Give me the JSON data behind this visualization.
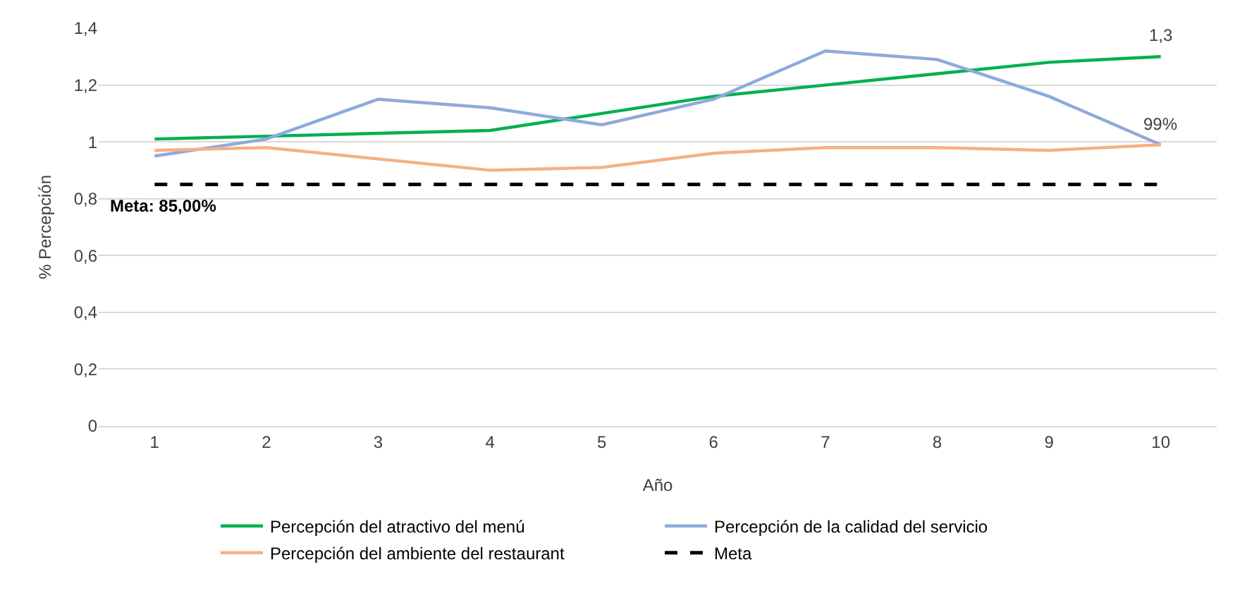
{
  "chart_data": {
    "type": "line",
    "xlabel": "Año",
    "ylabel": "% Percepción",
    "categories": [
      "1",
      "2",
      "3",
      "4",
      "5",
      "6",
      "7",
      "8",
      "9",
      "10"
    ],
    "series": [
      {
        "name": "Percepción del atractivo del menú",
        "color": "#00b050",
        "values": [
          1.01,
          1.02,
          1.03,
          1.04,
          1.1,
          1.16,
          1.2,
          1.24,
          1.28,
          1.3
        ]
      },
      {
        "name": "Percepción de la calidad del servicio",
        "color": "#8eaadb",
        "values": [
          0.95,
          1.01,
          1.15,
          1.12,
          1.06,
          1.15,
          1.32,
          1.29,
          1.16,
          0.99
        ]
      },
      {
        "name": "Percepción del ambiente del restaurant",
        "color": "#f4b183",
        "values": [
          0.97,
          0.98,
          0.94,
          0.9,
          0.91,
          0.96,
          0.98,
          0.98,
          0.97,
          0.99
        ]
      },
      {
        "name": "Meta",
        "color": "#000000",
        "line_style": "dashed",
        "values": [
          0.85,
          0.85,
          0.85,
          0.85,
          0.85,
          0.85,
          0.85,
          0.85,
          0.85,
          0.85
        ]
      }
    ],
    "ylim": [
      0,
      1.4
    ],
    "yticks": [
      0,
      {
        "value": 0.2,
        "label": "0,2"
      },
      {
        "value": 0.4,
        "label": "0,4"
      },
      {
        "value": 0.6,
        "label": "0,6"
      },
      {
        "value": 0.8,
        "label": "0,8"
      },
      1,
      {
        "value": 1.2,
        "label": "1,2"
      },
      {
        "value": 1.4,
        "label": "1,4"
      }
    ],
    "annotations": [
      {
        "text": "1,3",
        "x": "10",
        "y": 1.3
      },
      {
        "text": "99%",
        "x": "10",
        "y": 0.99
      },
      {
        "text": "Meta: 85,00%",
        "x": "1",
        "y": 0.85
      }
    ],
    "grid": "y",
    "legend": "bottom",
    "marker": "none"
  }
}
